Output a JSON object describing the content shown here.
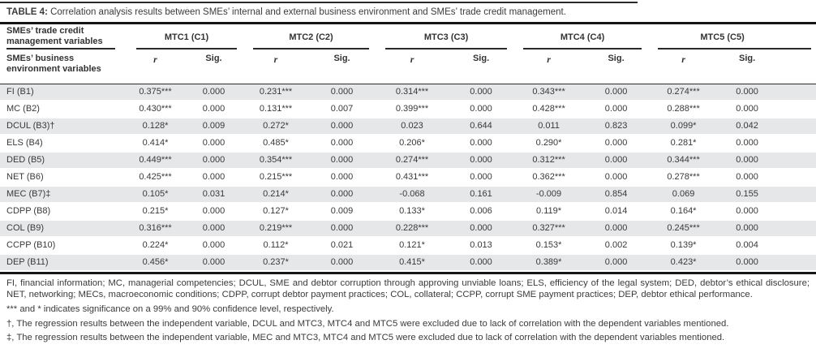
{
  "title": {
    "label": "TABLE 4:",
    "text": "Correlation analysis results between SMEs’ internal and external business environment and SMEs’ trade credit management."
  },
  "header": {
    "top_left": "SMEs’ trade credit management variables",
    "bottom_left": "SMEs’ business environment variables",
    "groups": [
      "MTC1 (C1)",
      "MTC2 (C2)",
      "MTC3 (C3)",
      "MTC4 (C4)",
      "MTC5 (C5)"
    ],
    "subcolumns": {
      "r": "r",
      "sig": "Sig."
    }
  },
  "rows": [
    {
      "label": "FI (B1)",
      "values": [
        "0.375***",
        "0.000",
        "0.231***",
        "0.000",
        "0.314***",
        "0.000",
        "0.343***",
        "0.000",
        "0.274***",
        "0.000"
      ]
    },
    {
      "label": "MC (B2)",
      "values": [
        "0.430***",
        "0.000",
        "0.131***",
        "0.007",
        "0.399***",
        "0.000",
        "0.428***",
        "0.000",
        "0.288***",
        "0.000"
      ]
    },
    {
      "label": "DCUL (B3)†",
      "values": [
        "0.128*",
        "0.009",
        "0.272*",
        "0.000",
        "0.023",
        "0.644",
        "0.011",
        "0.823",
        "0.099*",
        "0.042"
      ]
    },
    {
      "label": "ELS (B4)",
      "values": [
        "0.414*",
        "0.000",
        "0.485*",
        "0.000",
        "0.206*",
        "0.000",
        "0.290*",
        "0.000",
        "0.281*",
        "0.000"
      ]
    },
    {
      "label": "DED (B5)",
      "values": [
        "0.449***",
        "0.000",
        "0.354***",
        "0.000",
        "0.274***",
        "0.000",
        "0.312***",
        "0.000",
        "0.344***",
        "0.000"
      ]
    },
    {
      "label": "NET (B6)",
      "values": [
        "0.425***",
        "0.000",
        "0.215***",
        "0.000",
        "0.431***",
        "0.000",
        "0.362***",
        "0.000",
        "0.278***",
        "0.000"
      ]
    },
    {
      "label": "MEC (B7)‡",
      "values": [
        "0.105*",
        "0.031",
        "0.214*",
        "0.000",
        "-0.068",
        "0.161",
        "-0.009",
        "0.854",
        "0.069",
        "0.155"
      ]
    },
    {
      "label": "CDPP (B8)",
      "values": [
        "0.215*",
        "0.000",
        "0.127*",
        "0.009",
        "0.133*",
        "0.006",
        "0.119*",
        "0.014",
        "0.164*",
        "0.000"
      ]
    },
    {
      "label": "COL (B9)",
      "values": [
        "0.316***",
        "0.000",
        "0.219***",
        "0.000",
        "0.228***",
        "0.000",
        "0.327***",
        "0.000",
        "0.245***",
        "0.000"
      ]
    },
    {
      "label": "CCPP (B10)",
      "values": [
        "0.224*",
        "0.000",
        "0.112*",
        "0.021",
        "0.121*",
        "0.013",
        "0.153*",
        "0.002",
        "0.139*",
        "0.004"
      ]
    },
    {
      "label": "DEP (B11)",
      "values": [
        "0.456*",
        "0.000",
        "0.237*",
        "0.000",
        "0.415*",
        "0.000",
        "0.389*",
        "0.000",
        "0.423*",
        "0.000"
      ]
    }
  ],
  "footnotes": {
    "abbreviations": "FI, financial information; MC, managerial competencies; DCUL, SME and debtor corruption through approving unviable loans; ELS, efficiency of the legal system; DED, debtor’s ethical disclosure; NET, networking; MECs, macroeconomic conditions; CDPP, corrupt debtor payment practices; COL, collateral; CCPP, corrupt SME payment practices; DEP, debtor ethical performance.",
    "significance": "*** and * indicates significance on a 99% and 90% confidence level, respectively.",
    "dagger": "†, The regression results between the independent variable, DCUL and MTC3, MTC4 and MTC5 were excluded due to lack of correlation with the dependent variables mentioned.",
    "double_dagger": "‡, The regression results between the independent variable, MEC and MTC3, MTC4 and MTC5 were excluded due to lack of correlation with the dependent variables mentioned."
  },
  "colors": {
    "stripe": "#e6e7e8",
    "text": "#3b3b3d",
    "rule": "#161616"
  }
}
